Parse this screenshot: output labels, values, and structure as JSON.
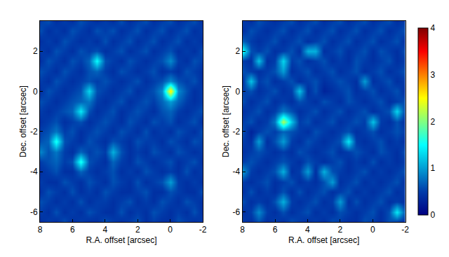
{
  "chart_data": [
    {
      "type": "heatmap",
      "x_label": "R.A. offset [arcsec]",
      "y_label": "Dec. offset [arcsec]",
      "x": [
        8,
        7.5,
        7,
        6.5,
        6,
        5.5,
        5,
        4.5,
        4,
        3.5,
        3,
        2.5,
        2,
        1.5,
        1,
        0.5,
        0,
        -0.5,
        -1,
        -1.5,
        -2
      ],
      "y": [
        -6.5,
        -6,
        -5.5,
        -5,
        -4.5,
        -4,
        -3.5,
        -3,
        -2.5,
        -2,
        -1.5,
        -1,
        -0.5,
        0,
        0.5,
        1,
        1.5,
        2,
        2.5,
        3,
        3.5
      ],
      "xlim": [
        8,
        -2
      ],
      "ylim": [
        -6.5,
        3.5
      ],
      "xticks": [
        8,
        6,
        4,
        2,
        0,
        -2
      ],
      "yticks": [
        -6,
        -4,
        -2,
        0,
        2
      ],
      "cells": [
        [
          0.4,
          0.5,
          0.4,
          0.6,
          0.4,
          0.5,
          0.4,
          0.4,
          0.6,
          0.5,
          0.4,
          0.5,
          0.6,
          0.4,
          0.5,
          0.4,
          0.4,
          0.6,
          0.5,
          0.4,
          0.5
        ],
        [
          0.5,
          0.4,
          0.6,
          0.4,
          0.5,
          0.4,
          0.6,
          0.5,
          0.4,
          0.4,
          0.6,
          0.4,
          0.5,
          0.4,
          0.6,
          0.5,
          0.4,
          0.5,
          0.4,
          0.6,
          0.4
        ],
        [
          0.6,
          0.5,
          0.4,
          0.5,
          0.4,
          0.6,
          0.4,
          0.5,
          0.5,
          0.4,
          0.5,
          0.6,
          0.4,
          0.5,
          0.4,
          0.6,
          0.5,
          0.4,
          0.6,
          0.5,
          0.4
        ],
        [
          0.4,
          0.6,
          0.5,
          0.4,
          0.6,
          0.4,
          0.5,
          0.4,
          0.6,
          0.5,
          0.4,
          0.4,
          0.5,
          0.6,
          0.4,
          0.4,
          0.6,
          0.5,
          0.4,
          0.4,
          0.6
        ],
        [
          0.5,
          0.4,
          0.4,
          0.6,
          0.5,
          0.4,
          0.6,
          0.5,
          0.4,
          0.6,
          0.5,
          0.4,
          0.6,
          0.4,
          0.5,
          0.6,
          1.0,
          0.5,
          0.4,
          0.5,
          0.4
        ],
        [
          0.4,
          0.5,
          0.6,
          0.4,
          0.4,
          0.7,
          0.5,
          0.4,
          0.5,
          0.6,
          0.4,
          0.5,
          0.4,
          0.6,
          0.5,
          0.4,
          0.5,
          0.4,
          0.6,
          0.4,
          0.5
        ],
        [
          0.5,
          0.6,
          0.7,
          0.5,
          0.6,
          1.6,
          0.6,
          0.5,
          0.4,
          0.7,
          0.5,
          0.4,
          0.6,
          0.5,
          0.4,
          0.5,
          0.6,
          0.4,
          0.5,
          0.6,
          0.4
        ],
        [
          0.9,
          0.6,
          0.8,
          0.5,
          0.4,
          0.7,
          0.5,
          0.6,
          0.5,
          1.1,
          0.6,
          0.4,
          0.5,
          0.4,
          0.6,
          0.5,
          0.4,
          0.6,
          0.5,
          0.4,
          0.5
        ],
        [
          0.6,
          0.7,
          1.6,
          0.6,
          0.5,
          0.4,
          0.6,
          0.5,
          0.4,
          0.6,
          0.5,
          0.4,
          0.6,
          0.5,
          0.5,
          0.4,
          0.6,
          0.5,
          0.4,
          0.6,
          0.5
        ],
        [
          0.5,
          0.6,
          0.8,
          0.5,
          0.6,
          0.4,
          0.5,
          0.6,
          0.5,
          0.4,
          0.6,
          0.5,
          0.4,
          0.6,
          0.4,
          0.5,
          0.4,
          0.6,
          0.5,
          0.4,
          0.6
        ],
        [
          0.4,
          0.5,
          0.6,
          0.4,
          0.5,
          0.6,
          0.4,
          0.5,
          0.6,
          0.5,
          0.4,
          0.6,
          0.5,
          0.4,
          0.6,
          0.5,
          0.6,
          0.4,
          0.5,
          0.6,
          0.4
        ],
        [
          0.5,
          0.4,
          0.5,
          0.6,
          0.7,
          1.4,
          0.6,
          0.4,
          0.5,
          0.6,
          0.4,
          0.5,
          0.6,
          0.5,
          0.4,
          0.6,
          0.7,
          0.5,
          0.4,
          0.5,
          0.6
        ],
        [
          0.6,
          0.5,
          0.4,
          0.5,
          0.6,
          0.7,
          0.8,
          0.5,
          0.4,
          0.5,
          0.6,
          0.4,
          0.5,
          0.6,
          0.5,
          0.7,
          1.0,
          0.7,
          0.5,
          0.4,
          0.5
        ],
        [
          0.4,
          0.6,
          0.5,
          0.4,
          0.5,
          0.6,
          1.3,
          0.6,
          0.5,
          0.4,
          0.5,
          0.6,
          0.4,
          0.5,
          0.6,
          0.9,
          2.6,
          0.9,
          0.6,
          0.4,
          0.5
        ],
        [
          0.5,
          0.4,
          0.6,
          0.5,
          0.4,
          0.5,
          0.6,
          0.5,
          0.6,
          0.5,
          0.4,
          0.5,
          0.6,
          0.4,
          0.5,
          0.6,
          0.9,
          0.6,
          0.5,
          0.6,
          0.4
        ],
        [
          0.6,
          0.5,
          0.4,
          0.6,
          0.5,
          0.4,
          0.6,
          0.7,
          0.5,
          0.4,
          0.6,
          0.5,
          0.4,
          0.5,
          0.6,
          0.4,
          0.5,
          0.4,
          0.6,
          0.5,
          0.4
        ],
        [
          0.4,
          0.6,
          0.5,
          0.4,
          0.6,
          0.5,
          0.7,
          1.5,
          0.6,
          0.5,
          0.4,
          0.6,
          0.5,
          0.4,
          0.5,
          0.6,
          0.9,
          0.5,
          0.4,
          0.6,
          0.5
        ],
        [
          0.5,
          0.4,
          0.6,
          0.5,
          0.4,
          0.6,
          0.5,
          0.6,
          0.4,
          0.5,
          0.6,
          0.4,
          0.5,
          0.6,
          0.4,
          0.5,
          0.6,
          0.4,
          0.5,
          0.4,
          0.6
        ],
        [
          0.4,
          0.5,
          0.4,
          0.6,
          0.5,
          0.4,
          0.5,
          0.4,
          0.6,
          0.4,
          0.5,
          0.6,
          0.4,
          0.5,
          0.6,
          0.4,
          0.5,
          0.6,
          0.4,
          0.5,
          0.4
        ],
        [
          0.6,
          0.4,
          0.5,
          0.4,
          0.6,
          0.5,
          0.4,
          0.6,
          0.5,
          0.6,
          0.4,
          0.5,
          0.6,
          0.4,
          0.5,
          0.6,
          0.4,
          0.5,
          0.6,
          0.4,
          0.5
        ],
        [
          0.5,
          0.6,
          0.4,
          0.5,
          0.4,
          0.6,
          0.5,
          0.4,
          0.5,
          0.4,
          0.6,
          0.4,
          0.5,
          0.6,
          0.4,
          0.5,
          0.6,
          0.4,
          0.5,
          0.6,
          0.4
        ]
      ]
    },
    {
      "type": "heatmap",
      "x_label": "R.A. offset [arcsec]",
      "y_label": "Dec. offset [arcsec]",
      "x": [
        8,
        7.5,
        7,
        6.5,
        6,
        5.5,
        5,
        4.5,
        4,
        3.5,
        3,
        2.5,
        2,
        1.5,
        1,
        0.5,
        0,
        -0.5,
        -1,
        -1.5,
        -2
      ],
      "y": [
        -6.5,
        -6,
        -5.5,
        -5,
        -4.5,
        -4,
        -3.5,
        -3,
        -2.5,
        -2,
        -1.5,
        -1,
        -0.5,
        0,
        0.5,
        1,
        1.5,
        2,
        2.5,
        3,
        3.5
      ],
      "xlim": [
        8,
        -2
      ],
      "ylim": [
        -6.5,
        3.5
      ],
      "xticks": [
        8,
        6,
        4,
        2,
        0,
        -2
      ],
      "yticks": [
        -6,
        -4,
        -2,
        0,
        2
      ],
      "colorbar": {
        "range": [
          0,
          4
        ],
        "ticks": [
          0,
          1,
          2,
          3,
          4
        ]
      },
      "cells": [
        [
          0.5,
          0.4,
          0.6,
          0.4,
          0.5,
          0.4,
          0.6,
          0.5,
          0.4,
          0.5,
          0.4,
          0.6,
          0.5,
          0.4,
          0.4,
          0.6,
          0.5,
          0.4,
          0.6,
          0.5,
          0.4
        ],
        [
          0.4,
          0.5,
          0.9,
          0.5,
          0.4,
          0.6,
          0.4,
          0.5,
          0.6,
          0.4,
          0.5,
          0.4,
          0.6,
          0.5,
          0.4,
          0.5,
          0.6,
          0.4,
          0.6,
          1.4,
          0.6
        ],
        [
          0.6,
          0.4,
          0.5,
          0.4,
          0.6,
          1.1,
          0.5,
          0.4,
          0.5,
          0.6,
          0.4,
          0.5,
          1.0,
          0.4,
          0.6,
          0.4,
          0.5,
          0.6,
          0.4,
          0.5,
          0.4
        ],
        [
          0.4,
          0.6,
          0.4,
          0.5,
          0.4,
          0.6,
          0.4,
          0.6,
          0.4,
          0.5,
          0.6,
          0.4,
          0.5,
          0.6,
          0.4,
          0.5,
          0.4,
          0.5,
          0.6,
          0.4,
          0.5
        ],
        [
          0.5,
          0.4,
          0.5,
          0.6,
          0.4,
          0.5,
          0.6,
          0.4,
          0.5,
          0.4,
          0.6,
          1.0,
          0.4,
          0.5,
          0.6,
          0.4,
          0.5,
          0.4,
          0.5,
          0.6,
          0.4
        ],
        [
          1.0,
          0.5,
          0.4,
          0.5,
          0.6,
          1.1,
          0.4,
          0.5,
          1.0,
          0.4,
          1.1,
          0.6,
          0.5,
          0.4,
          0.5,
          0.6,
          0.4,
          0.5,
          0.4,
          0.5,
          0.6
        ],
        [
          0.5,
          0.6,
          0.5,
          0.4,
          0.5,
          0.6,
          0.5,
          0.4,
          0.6,
          0.5,
          0.4,
          0.5,
          0.6,
          0.4,
          0.5,
          0.4,
          0.6,
          0.4,
          0.5,
          0.4,
          0.5
        ],
        [
          0.4,
          0.5,
          0.6,
          0.5,
          0.4,
          0.5,
          0.4,
          0.6,
          0.5,
          0.4,
          0.5,
          0.6,
          0.4,
          0.5,
          0.6,
          0.5,
          0.4,
          0.6,
          0.5,
          0.4,
          0.6
        ],
        [
          0.5,
          0.4,
          1.0,
          0.4,
          0.6,
          1.0,
          0.5,
          0.4,
          0.6,
          0.5,
          0.4,
          0.5,
          0.6,
          1.4,
          0.5,
          0.4,
          0.5,
          0.6,
          0.4,
          0.5,
          0.4
        ],
        [
          0.6,
          0.3,
          0.5,
          0.6,
          0.5,
          0.7,
          0.6,
          0.5,
          0.4,
          0.6,
          0.5,
          0.4,
          0.5,
          0.6,
          0.4,
          0.5,
          0.6,
          0.4,
          0.5,
          0.6,
          0.5
        ],
        [
          0.5,
          0.6,
          0.4,
          0.5,
          0.8,
          2.2,
          1.2,
          0.5,
          0.6,
          0.4,
          0.5,
          0.6,
          0.4,
          0.5,
          0.6,
          0.5,
          1.2,
          0.5,
          0.4,
          0.6,
          0.4
        ],
        [
          0.4,
          0.5,
          0.6,
          0.4,
          0.5,
          0.8,
          0.6,
          0.4,
          0.5,
          0.6,
          0.4,
          0.5,
          0.6,
          0.4,
          0.5,
          0.6,
          0.4,
          0.5,
          0.6,
          1.3,
          0.5
        ],
        [
          0.6,
          0.4,
          0.5,
          0.6,
          0.4,
          0.5,
          0.4,
          0.6,
          0.5,
          0.4,
          0.6,
          0.5,
          0.4,
          0.6,
          0.5,
          0.4,
          0.5,
          0.6,
          0.4,
          0.5,
          0.6
        ],
        [
          0.5,
          0.6,
          0.4,
          0.5,
          0.6,
          0.4,
          0.5,
          1.2,
          0.4,
          0.6,
          0.3,
          0.4,
          0.5,
          0.6,
          0.4,
          0.5,
          0.6,
          0.4,
          0.5,
          0.6,
          0.4
        ],
        [
          0.4,
          1.2,
          0.5,
          0.6,
          0.4,
          0.5,
          0.6,
          0.4,
          0.5,
          0.6,
          0.4,
          0.5,
          0.6,
          0.5,
          0.4,
          1.0,
          0.4,
          0.5,
          0.6,
          0.4,
          0.5
        ],
        [
          0.6,
          0.5,
          0.4,
          0.5,
          0.6,
          1.0,
          0.4,
          0.5,
          0.6,
          0.4,
          0.5,
          0.6,
          0.4,
          0.5,
          0.6,
          0.4,
          0.5,
          0.6,
          0.4,
          0.5,
          0.6
        ],
        [
          0.5,
          0.4,
          1.2,
          0.4,
          0.5,
          1.3,
          0.5,
          0.6,
          0.4,
          0.5,
          0.6,
          0.4,
          0.5,
          0.4,
          0.6,
          0.5,
          0.4,
          0.5,
          0.6,
          0.4,
          0.5
        ],
        [
          1.6,
          0.6,
          0.5,
          0.6,
          0.4,
          0.5,
          0.6,
          0.4,
          1.1,
          1.1,
          0.4,
          0.5,
          0.6,
          0.4,
          0.5,
          0.6,
          0.4,
          0.6,
          0.5,
          0.4,
          0.6
        ],
        [
          0.7,
          0.5,
          0.4,
          0.5,
          0.6,
          0.4,
          0.5,
          0.6,
          0.4,
          0.5,
          0.6,
          0.4,
          0.5,
          0.6,
          0.4,
          0.5,
          0.6,
          0.4,
          0.5,
          0.6,
          0.4
        ],
        [
          0.4,
          0.6,
          0.5,
          0.4,
          0.5,
          0.6,
          0.4,
          0.5,
          0.6,
          0.4,
          0.5,
          0.6,
          0.4,
          0.5,
          0.6,
          0.4,
          0.5,
          0.6,
          0.4,
          0.5,
          0.6
        ],
        [
          0.5,
          0.4,
          0.6,
          0.5,
          0.4,
          0.5,
          0.6,
          0.4,
          0.5,
          0.6,
          0.4,
          0.5,
          0.6,
          0.4,
          0.5,
          0.6,
          0.4,
          0.5,
          0.6,
          0.4,
          0.5
        ]
      ]
    }
  ]
}
